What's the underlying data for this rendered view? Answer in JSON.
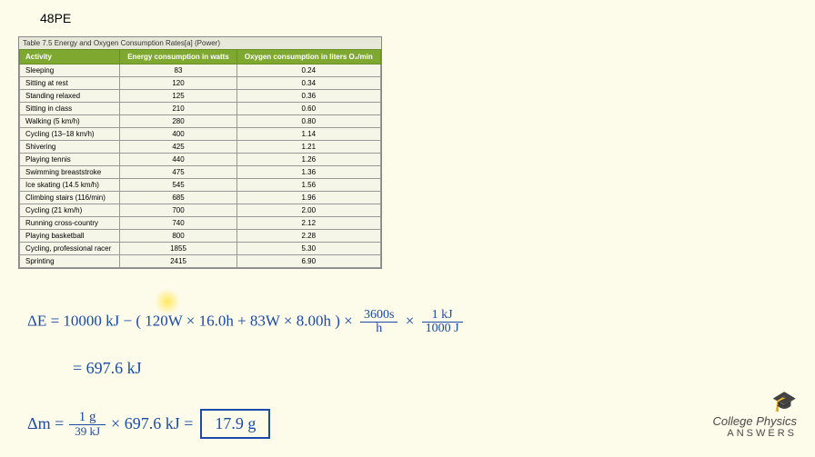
{
  "problem_label": "48PE",
  "table": {
    "caption": "Table 7.5 Energy and Oxygen Consumption Rates[a] (Power)",
    "headers": [
      "Activity",
      "Energy consumption in watts",
      "Oxygen consumption in liters O₂/min"
    ],
    "header_bg": "#7fa830",
    "header_fg": "#ffffff",
    "cell_bg": "#f5f5e8",
    "rows": [
      [
        "Sleeping",
        "83",
        "0.24"
      ],
      [
        "Sitting at rest",
        "120",
        "0.34"
      ],
      [
        "Standing relaxed",
        "125",
        "0.36"
      ],
      [
        "Sitting in class",
        "210",
        "0.60"
      ],
      [
        "Walking (5 km/h)",
        "280",
        "0.80"
      ],
      [
        "Cycling (13–18 km/h)",
        "400",
        "1.14"
      ],
      [
        "Shivering",
        "425",
        "1.21"
      ],
      [
        "Playing tennis",
        "440",
        "1.26"
      ],
      [
        "Swimming breaststroke",
        "475",
        "1.36"
      ],
      [
        "Ice skating (14.5 km/h)",
        "545",
        "1.56"
      ],
      [
        "Climbing stairs (116/min)",
        "685",
        "1.96"
      ],
      [
        "Cycling (21 km/h)",
        "700",
        "2.00"
      ],
      [
        "Running cross-country",
        "740",
        "2.12"
      ],
      [
        "Playing basketball",
        "800",
        "2.28"
      ],
      [
        "Cycling, professional racer",
        "1855",
        "5.30"
      ],
      [
        "Sprinting",
        "2415",
        "6.90"
      ]
    ]
  },
  "equations": {
    "eq1_lhs": "ΔE = 10000 kJ −",
    "eq1_paren": "( 120W × 16.0h + 83W × 8.00h )",
    "eq1_times": "×",
    "eq1_frac1_num": "3600s",
    "eq1_frac1_den": "h",
    "eq1_frac2_num": "1 kJ",
    "eq1_frac2_den": "1000 J",
    "eq2": "= 697.6 kJ",
    "eq3_lhs": "Δm =",
    "eq3_frac_num": "1 g",
    "eq3_frac_den": "39 kJ",
    "eq3_mid": "× 697.6 kJ =",
    "eq3_result": "17.9 g"
  },
  "colors": {
    "background": "#fdfbe9",
    "ink": "#1a4ba8",
    "highlight": "#ffe650"
  },
  "logo": {
    "title": "College Physics",
    "subtitle": "ANSWERS"
  }
}
